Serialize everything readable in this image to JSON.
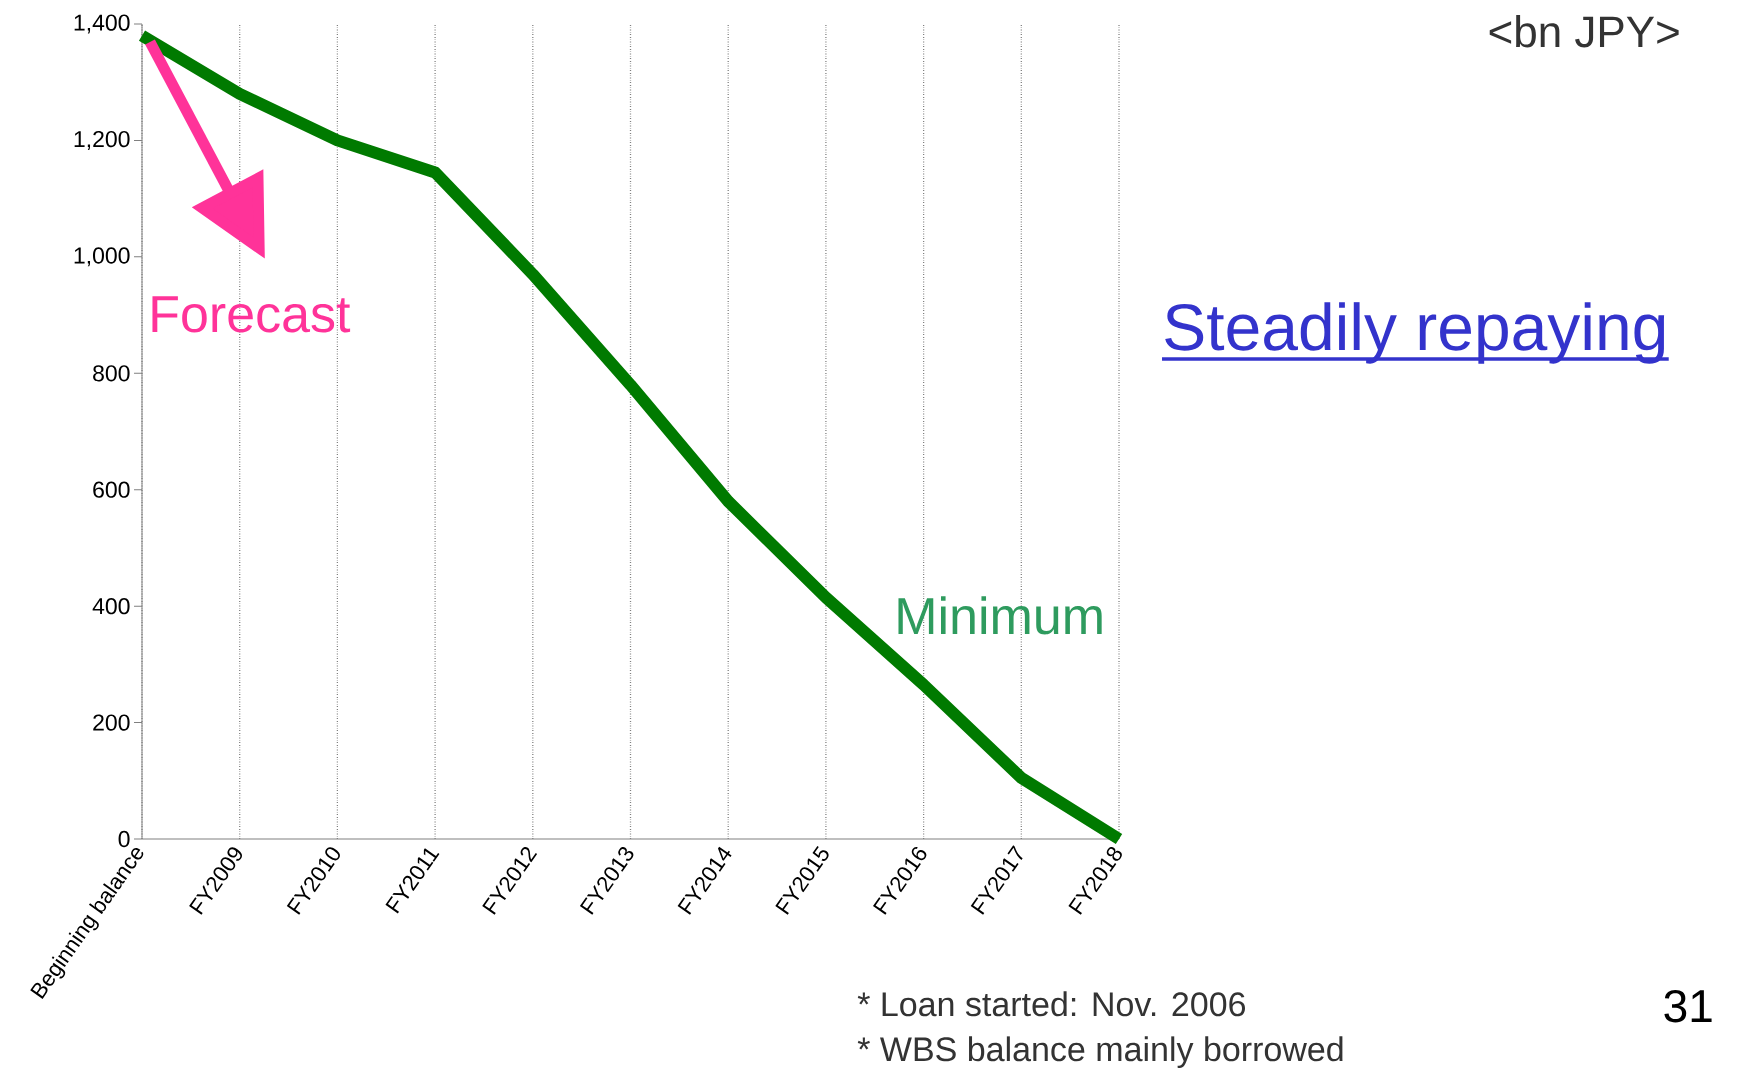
{
  "chart_data": {
    "type": "line",
    "categories": [
      "Beginning balance",
      "FY2009",
      "FY2010",
      "FY2011",
      "FY2012",
      "FY2013",
      "FY2014",
      "FY2015",
      "FY2016",
      "FY2017",
      "FY2018"
    ],
    "series": [
      {
        "color": "#007a00",
        "values": [
          1380,
          1280,
          1200,
          1145,
          970,
          780,
          580,
          415,
          265,
          105,
          0
        ]
      }
    ],
    "ylim": [
      0,
      1400
    ],
    "yticks": [
      0,
      200,
      400,
      600,
      800,
      {
        "value": 1000,
        "label": "1,000"
      },
      {
        "value": 1200,
        "label": "1,200"
      },
      {
        "value": 1400,
        "label": "1,400"
      }
    ],
    "grid": "x",
    "annotations": [
      "Forecast",
      "Minimum",
      "Steadily repaying",
      "<bn JPY>",
      "31",
      "* Loan started: Nov. 2006",
      "* WBS balance mainly borrowed"
    ]
  }
}
